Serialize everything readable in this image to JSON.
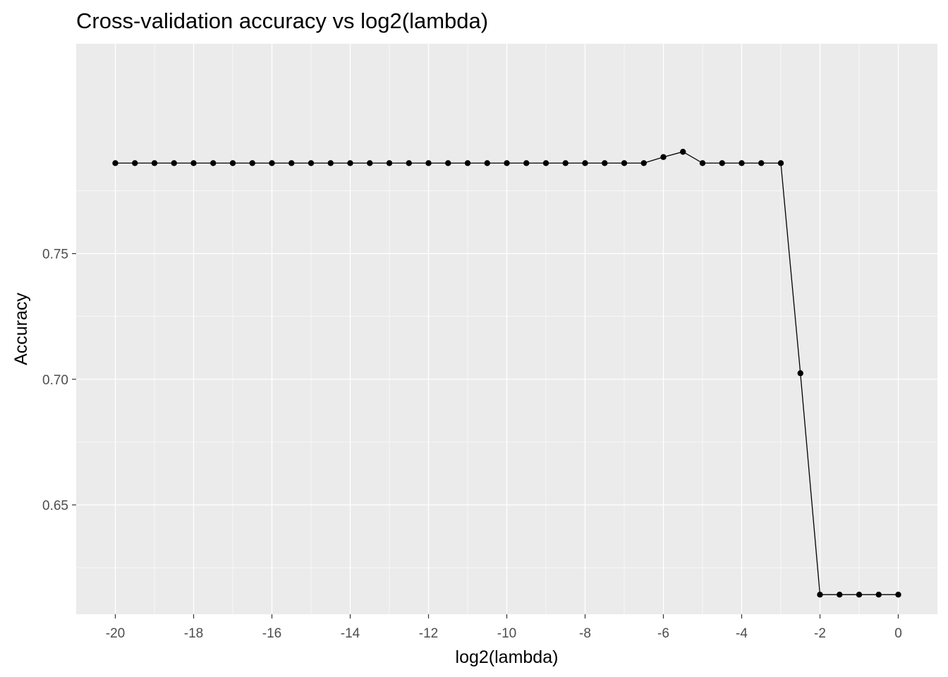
{
  "chart_data": {
    "type": "line",
    "title": "Cross-validation accuracy vs log2(lambda)",
    "xlabel": "log2(lambda)",
    "ylabel": "Accuracy",
    "xlim": [
      -21,
      1
    ],
    "ylim": [
      0.6065,
      0.8335
    ],
    "x_ticks": [
      -20,
      -18,
      -16,
      -14,
      -12,
      -10,
      -8,
      -6,
      -4,
      -2,
      0
    ],
    "y_ticks": [
      0.65,
      0.7,
      0.75
    ],
    "grid": true,
    "legend": "none",
    "colors": {
      "panel": "#ebebeb",
      "grid": "#ffffff",
      "line": "#000000",
      "point": "#000000"
    },
    "series": [
      {
        "x": [
          -20,
          -19.5,
          -19,
          -18.5,
          -18,
          -17.5,
          -17,
          -16.5,
          -16,
          -15.5,
          -15,
          -14.5,
          -14,
          -13.5,
          -13,
          -12.5,
          -12,
          -11.5,
          -11,
          -10.5,
          -10,
          -9.5,
          -9,
          -8.5,
          -8,
          -7.5,
          -7,
          -6.5,
          -6,
          -5.5,
          -5,
          -4.5,
          -4,
          -3.5,
          -3,
          -2.5,
          -2,
          -1.5,
          -1,
          -0.5,
          0
        ],
        "y": [
          0.786,
          0.786,
          0.786,
          0.786,
          0.786,
          0.786,
          0.786,
          0.786,
          0.786,
          0.786,
          0.786,
          0.786,
          0.786,
          0.786,
          0.786,
          0.786,
          0.786,
          0.786,
          0.786,
          0.786,
          0.786,
          0.786,
          0.786,
          0.786,
          0.786,
          0.786,
          0.786,
          0.786,
          0.7884,
          0.7905,
          0.786,
          0.786,
          0.786,
          0.786,
          0.786,
          0.7024,
          0.6143,
          0.6143,
          0.6143,
          0.6143,
          0.6143
        ]
      }
    ]
  }
}
